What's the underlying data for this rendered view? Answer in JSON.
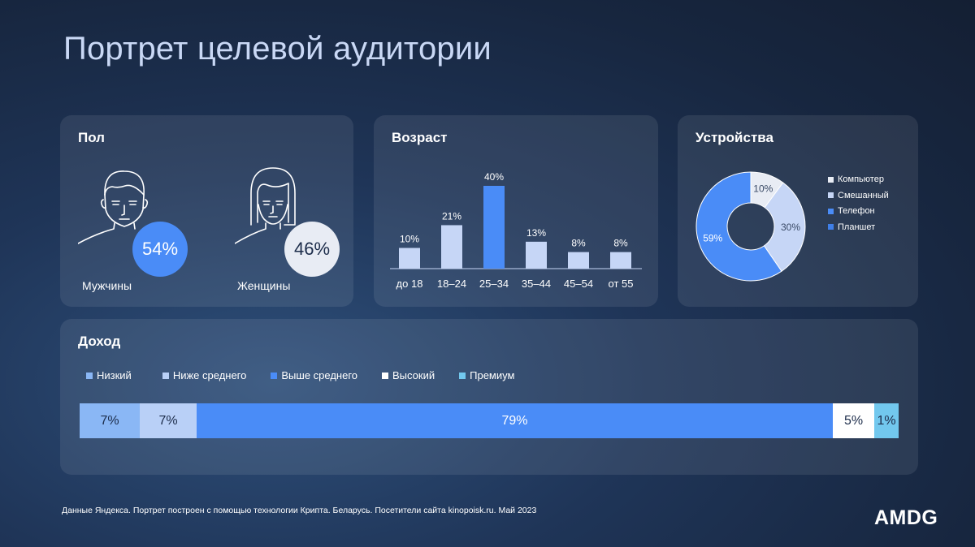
{
  "title": "Портрет целевой аудитории",
  "gender": {
    "title": "Пол",
    "men": {
      "label": "Мужчины",
      "percent": "54%",
      "icon": "man-face-icon"
    },
    "women": {
      "label": "Женщины",
      "percent": "46%",
      "icon": "woman-face-icon"
    }
  },
  "age": {
    "title": "Возраст"
  },
  "devices": {
    "title": "Устройства"
  },
  "income": {
    "title": "Доход"
  },
  "colors": {
    "accent_blue": "#4a8cf7",
    "light_blue": "#c6d6f6",
    "pale_blue": "#8ab7f5",
    "sky_blue": "#72c8ee",
    "white": "#ffffff",
    "gray": "#e8ecf4"
  },
  "footnote": "Данные Яндекса. Портрет построен с помощью технологии Крипта. Беларусь. Посетители сайта kinopoisk.ru. Май 2023",
  "logo": "AMDG",
  "chart_data": [
    {
      "type": "bar",
      "title": "Возраст",
      "categories": [
        "до 18",
        "18–24",
        "25–34",
        "35–44",
        "45–54",
        "от 55"
      ],
      "values": [
        10,
        21,
        40,
        13,
        8,
        8
      ],
      "value_labels": [
        "10%",
        "21%",
        "40%",
        "13%",
        "8%",
        "8%"
      ],
      "highlight_index": 2,
      "ylim": [
        0,
        40
      ]
    },
    {
      "type": "pie",
      "title": "Устройства",
      "donut": true,
      "legend_position": "right",
      "labels": [
        "Компьютер",
        "Смешанный",
        "Телефон",
        "Планшет"
      ],
      "values": [
        10,
        30,
        59,
        0
      ],
      "slice_labels": [
        "10%",
        "30%",
        "59%",
        ""
      ],
      "colors": [
        "#e8ecf4",
        "#c6d6f6",
        "#4a8cf7",
        "#3f7fe8"
      ]
    },
    {
      "type": "bar",
      "title": "Доход",
      "stacked": true,
      "orientation": "horizontal",
      "legend_position": "top",
      "labels": [
        "Низкий",
        "Ниже среднего",
        "Выше среднего",
        "Высокий",
        "Премиум"
      ],
      "values": [
        7,
        7,
        79,
        5,
        1
      ],
      "value_labels": [
        "7%",
        "7%",
        "79%",
        "5%",
        "1%"
      ],
      "colors": [
        "#8ab7f5",
        "#b9d0f7",
        "#4a8cf7",
        "#ffffff",
        "#72c8ee"
      ]
    }
  ]
}
